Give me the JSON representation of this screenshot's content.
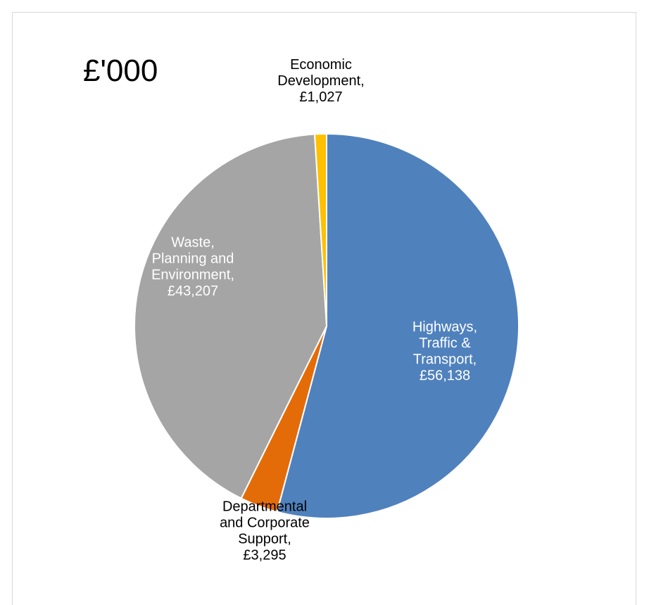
{
  "chart_data": {
    "type": "pie",
    "title": "£'000",
    "start_angle_deg": 0,
    "direction": "clockwise",
    "slices": [
      {
        "name": "Highways, Traffic & Transport",
        "value": 56138,
        "color": "#4f81bd",
        "label_lines": [
          "Highways,",
          "Traffic &",
          "Transport,",
          "£56,138"
        ],
        "label_color": "#ffffff"
      },
      {
        "name": "Departmental and Corporate Support",
        "value": 3295,
        "color": "#e36c09",
        "label_lines": [
          "Departmental",
          "and Corporate",
          "Support,",
          "£3,295"
        ],
        "label_color": "#000000"
      },
      {
        "name": "Waste, Planning and Environment",
        "value": 43207,
        "color": "#a5a5a5",
        "label_lines": [
          "Waste,",
          "Planning and",
          "Environment,",
          "£43,207"
        ],
        "label_color": "#ffffff"
      },
      {
        "name": "Economic Development",
        "value": 1027,
        "color": "#ffc000",
        "label_lines": [
          "Economic",
          "Development,",
          "£1,027"
        ],
        "label_color": "#000000"
      }
    ]
  }
}
